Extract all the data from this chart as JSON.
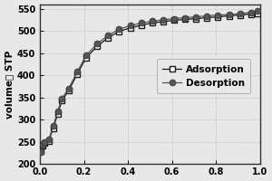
{
  "adsorption_x": [
    0.005,
    0.01,
    0.02,
    0.04,
    0.06,
    0.08,
    0.1,
    0.13,
    0.17,
    0.21,
    0.26,
    0.31,
    0.36,
    0.41,
    0.46,
    0.51,
    0.56,
    0.61,
    0.66,
    0.71,
    0.76,
    0.81,
    0.86,
    0.91,
    0.96,
    0.99
  ],
  "adsorption_y": [
    228,
    240,
    247,
    252,
    280,
    312,
    343,
    365,
    403,
    440,
    465,
    485,
    499,
    507,
    513,
    518,
    521,
    524,
    526,
    528,
    530,
    532,
    534,
    536,
    538,
    540
  ],
  "desorption_x": [
    0.005,
    0.01,
    0.02,
    0.04,
    0.06,
    0.08,
    0.1,
    0.13,
    0.17,
    0.21,
    0.26,
    0.31,
    0.36,
    0.41,
    0.46,
    0.51,
    0.56,
    0.61,
    0.66,
    0.71,
    0.76,
    0.81,
    0.86,
    0.91,
    0.96,
    0.99
  ],
  "desorption_y": [
    227,
    242,
    250,
    255,
    285,
    318,
    348,
    370,
    408,
    445,
    471,
    490,
    504,
    512,
    518,
    522,
    525,
    528,
    530,
    532,
    534,
    536,
    537,
    539,
    542,
    545
  ],
  "ylabel": "volume， STP",
  "xlim": [
    0.0,
    1.0
  ],
  "ylim": [
    200,
    560
  ],
  "yticks": [
    200,
    250,
    300,
    350,
    400,
    450,
    500,
    550
  ],
  "xticks": [
    0.0,
    0.2,
    0.4,
    0.6,
    0.8,
    1.0
  ],
  "adsorption_color": "#1a1a1a",
  "desorption_color": "#555555",
  "line_color": "#555555",
  "grid_color": "#bbbbbb",
  "background_color": "#e8e8e8",
  "plot_bg_color": "#e8e8e8",
  "legend_adsorption": "Adsorption",
  "legend_desorption": "Desorption"
}
